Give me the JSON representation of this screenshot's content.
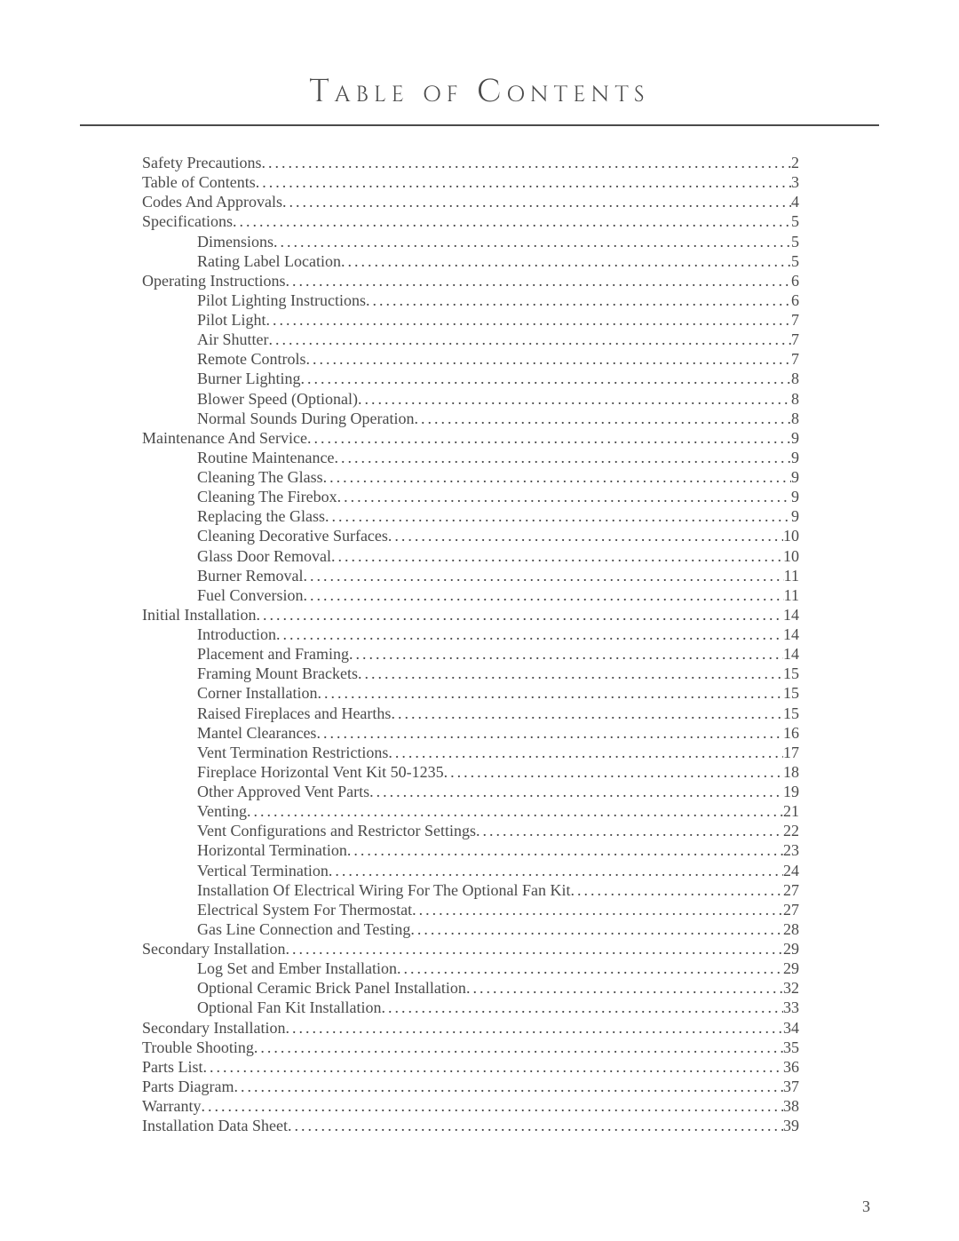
{
  "title": "Table of Contents",
  "page_number": "3",
  "colors": {
    "text": "#4a4a4a",
    "background": "#ffffff",
    "divider": "#4a4a4a"
  },
  "typography": {
    "title_fontsize": 36,
    "title_letterspacing": 6,
    "body_fontsize": 18,
    "line_height": 1.23
  },
  "entries": [
    {
      "label": "Safety Precautions",
      "page": "2",
      "indent": false
    },
    {
      "label": "Table of Contents",
      "page": "3",
      "indent": false
    },
    {
      "label": "Codes And Approvals",
      "page": "4",
      "indent": false
    },
    {
      "label": "Specifications",
      "page": "5",
      "indent": false
    },
    {
      "label": "Dimensions",
      "page": "5",
      "indent": true
    },
    {
      "label": "Rating Label Location",
      "page": "5",
      "indent": true
    },
    {
      "label": "Operating Instructions",
      "page": "6",
      "indent": false
    },
    {
      "label": "Pilot Lighting Instructions",
      "page": "6",
      "indent": true
    },
    {
      "label": "Pilot Light",
      "page": "7",
      "indent": true
    },
    {
      "label": "Air Shutter",
      "page": "7",
      "indent": true
    },
    {
      "label": "Remote Controls",
      "page": "7",
      "indent": true
    },
    {
      "label": "Burner Lighting",
      "page": "8",
      "indent": true
    },
    {
      "label": "Blower Speed (Optional)",
      "page": "8",
      "indent": true
    },
    {
      "label": "Normal Sounds During Operation",
      "page": "8",
      "indent": true
    },
    {
      "label": "Maintenance And Service",
      "page": "9",
      "indent": false
    },
    {
      "label": "Routine Maintenance",
      "page": "9",
      "indent": true
    },
    {
      "label": "Cleaning The Glass",
      "page": "9",
      "indent": true
    },
    {
      "label": "Cleaning The Firebox",
      "page": "9",
      "indent": true
    },
    {
      "label": "Replacing the Glass",
      "page": "9",
      "indent": true
    },
    {
      "label": "Cleaning Decorative Surfaces",
      "page": "10",
      "indent": true
    },
    {
      "label": "Glass Door Removal",
      "page": "10",
      "indent": true
    },
    {
      "label": "Burner Removal",
      "page": "11",
      "indent": true
    },
    {
      "label": "Fuel Conversion",
      "page": "11",
      "indent": true
    },
    {
      "label": "Initial Installation",
      "page": "14",
      "indent": false
    },
    {
      "label": "Introduction",
      "page": "14",
      "indent": true
    },
    {
      "label": "Placement and Framing",
      "page": "14",
      "indent": true
    },
    {
      "label": "Framing Mount Brackets",
      "page": "15",
      "indent": true
    },
    {
      "label": "Corner Installation",
      "page": "15",
      "indent": true
    },
    {
      "label": "Raised Fireplaces and Hearths",
      "page": "15",
      "indent": true
    },
    {
      "label": "Mantel Clearances",
      "page": "16",
      "indent": true
    },
    {
      "label": "Vent Termination Restrictions",
      "page": "17",
      "indent": true
    },
    {
      "label": "Fireplace Horizontal Vent Kit 50-1235",
      "page": "18",
      "indent": true
    },
    {
      "label": "Other Approved Vent Parts",
      "page": "19",
      "indent": true
    },
    {
      "label": "Venting",
      "page": "21",
      "indent": true
    },
    {
      "label": "Vent Configurations and Restrictor Settings",
      "page": "22",
      "indent": true
    },
    {
      "label": "Horizontal Termination",
      "page": "23",
      "indent": true
    },
    {
      "label": "Vertical Termination",
      "page": "24",
      "indent": true
    },
    {
      "label": "Installation Of Electrical Wiring For The Optional Fan Kit",
      "page": "27",
      "indent": true
    },
    {
      "label": "Electrical System For Thermostat",
      "page": "27",
      "indent": true
    },
    {
      "label": "Gas Line Connection and Testing",
      "page": "28",
      "indent": true
    },
    {
      "label": "Secondary Installation",
      "page": "29",
      "indent": false
    },
    {
      "label": "Log Set and Ember Installation",
      "page": "29",
      "indent": true
    },
    {
      "label": "Optional Ceramic Brick Panel Installation",
      "page": "32",
      "indent": true
    },
    {
      "label": "Optional Fan Kit Installation",
      "page": "33",
      "indent": true
    },
    {
      "label": "Secondary Installation",
      "page": "34",
      "indent": false
    },
    {
      "label": "Trouble Shooting",
      "page": "35",
      "indent": false
    },
    {
      "label": "Parts List",
      "page": "36",
      "indent": false
    },
    {
      "label": "Parts Diagram",
      "page": "37",
      "indent": false
    },
    {
      "label": "Warranty",
      "page": "38",
      "indent": false
    },
    {
      "label": "Installation Data Sheet",
      "page": "39",
      "indent": false
    }
  ]
}
